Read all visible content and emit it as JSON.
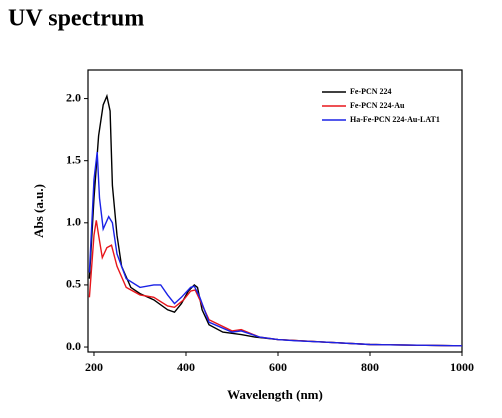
{
  "page_title": "UV spectrum",
  "chart_data": {
    "type": "line",
    "xlabel": "Wavelength (nm)",
    "ylabel": "Abs (a.u.)",
    "xlim": [
      187,
      1000
    ],
    "ylim": [
      -0.04,
      2.23
    ],
    "xticks": [
      200,
      400,
      600,
      800,
      1000
    ],
    "yticks": [
      {
        "value": 0,
        "label": "0.0"
      },
      {
        "value": 0.5,
        "label": "0.5"
      },
      {
        "value": 1,
        "label": "1.0"
      },
      {
        "value": 1.5,
        "label": "1.5"
      },
      {
        "value": 2,
        "label": "2.0"
      }
    ],
    "legend": "top-right",
    "series": [
      {
        "name": "Fe-PCN 224",
        "color": "#000000",
        "x": [
          190,
          200,
          210,
          220,
          228,
          235,
          240,
          250,
          260,
          280,
          300,
          330,
          360,
          375,
          390,
          405,
          418,
          425,
          435,
          450,
          480,
          520,
          550,
          600,
          700,
          800,
          1000
        ],
        "values": [
          0.55,
          1.2,
          1.7,
          1.95,
          2.02,
          1.9,
          1.3,
          0.9,
          0.65,
          0.48,
          0.43,
          0.38,
          0.3,
          0.28,
          0.35,
          0.45,
          0.5,
          0.48,
          0.3,
          0.18,
          0.12,
          0.1,
          0.08,
          0.06,
          0.04,
          0.02,
          0.01
        ]
      },
      {
        "name": "Fe-PCN 224-Au",
        "color": "#e8161b",
        "x": [
          190,
          200,
          205,
          210,
          218,
          228,
          238,
          250,
          270,
          300,
          330,
          360,
          375,
          395,
          410,
          420,
          430,
          450,
          500,
          520,
          560,
          600,
          700,
          800,
          1000
        ],
        "values": [
          0.4,
          0.9,
          1.02,
          0.9,
          0.72,
          0.8,
          0.82,
          0.65,
          0.48,
          0.42,
          0.4,
          0.33,
          0.32,
          0.38,
          0.45,
          0.46,
          0.38,
          0.22,
          0.13,
          0.14,
          0.08,
          0.06,
          0.04,
          0.02,
          0.01
        ]
      },
      {
        "name": "Ha-Fe-PCN 224-Au-LAT1",
        "color": "#1a22e6",
        "x": [
          190,
          200,
          207,
          212,
          220,
          232,
          240,
          250,
          270,
          300,
          330,
          345,
          360,
          375,
          390,
          410,
          418,
          430,
          450,
          500,
          520,
          560,
          600,
          640,
          700,
          800,
          1000
        ],
        "values": [
          0.6,
          1.35,
          1.57,
          1.2,
          0.95,
          1.05,
          1.0,
          0.75,
          0.55,
          0.48,
          0.5,
          0.5,
          0.42,
          0.35,
          0.4,
          0.48,
          0.49,
          0.4,
          0.2,
          0.12,
          0.13,
          0.08,
          0.06,
          0.05,
          0.04,
          0.02,
          0.01
        ]
      }
    ]
  }
}
